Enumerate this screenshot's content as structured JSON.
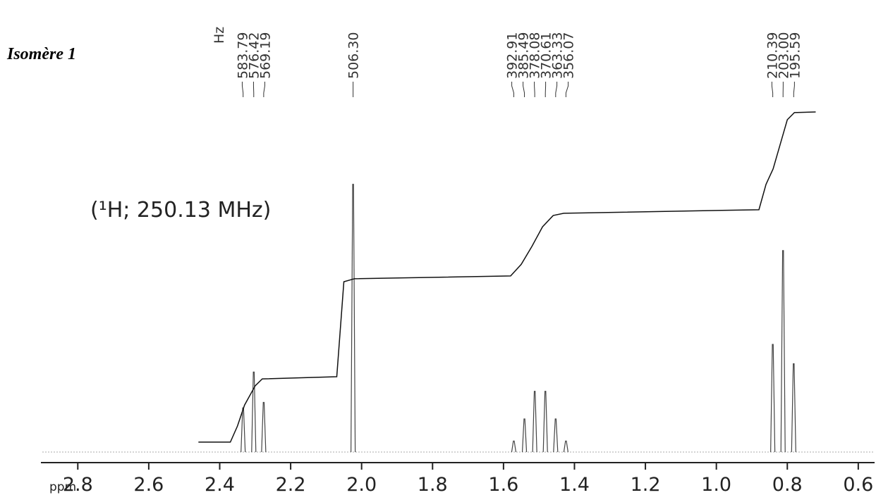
{
  "chart_data": {
    "type": "nmr",
    "title": "Isomère 1",
    "annotation": "(¹H; 250.13 MHz)",
    "peak_label_unit": "Hz",
    "x_label": "ppm",
    "peak_labels": [
      "583.79",
      "576.42",
      "569.19",
      "506.30",
      "392.91",
      "385.49",
      "378.08",
      "370.61",
      "363.33",
      "356.07",
      "210.39",
      "203.00",
      "195.59"
    ],
    "peak_groups": [
      [
        0,
        1,
        2
      ],
      [
        3
      ],
      [
        4,
        5,
        6,
        7,
        8,
        9
      ],
      [
        10,
        11,
        12
      ]
    ],
    "peaks": {
      "x": [
        2.334,
        2.304,
        2.276,
        2.024,
        1.571,
        1.541,
        1.512,
        1.482,
        1.453,
        1.424,
        0.841,
        0.812,
        0.782
      ],
      "values": [
        16,
        29,
        18,
        97,
        4,
        12,
        22,
        22,
        12,
        4,
        39,
        73,
        32
      ],
      "color": "#444444"
    },
    "integral": {
      "x": [
        2.46,
        2.37,
        2.35,
        2.33,
        2.3,
        2.28,
        2.07,
        2.05,
        2.02,
        1.58,
        1.55,
        1.52,
        1.49,
        1.46,
        1.43,
        0.88,
        0.86,
        0.84,
        0.82,
        0.8,
        0.78,
        0.72
      ],
      "values": [
        3.6,
        3.6,
        9.4,
        17,
        24,
        26.5,
        27.3,
        61.7,
        62.8,
        63.8,
        68,
        74.5,
        81.6,
        85.7,
        86.5,
        87.8,
        97,
        102.6,
        111.5,
        120.4,
        123,
        123.2
      ],
      "color": "#111111"
    },
    "xlim": [
      2.9,
      0.55
    ],
    "ylim": [
      0,
      125
    ],
    "xticks": [
      2.8,
      2.6,
      2.4,
      2.2,
      {
        "value": 2,
        "label": "2.0"
      },
      1.8,
      1.6,
      1.4,
      1.2,
      {
        "value": 1,
        "label": "1.0"
      },
      0.8,
      0.6
    ]
  }
}
